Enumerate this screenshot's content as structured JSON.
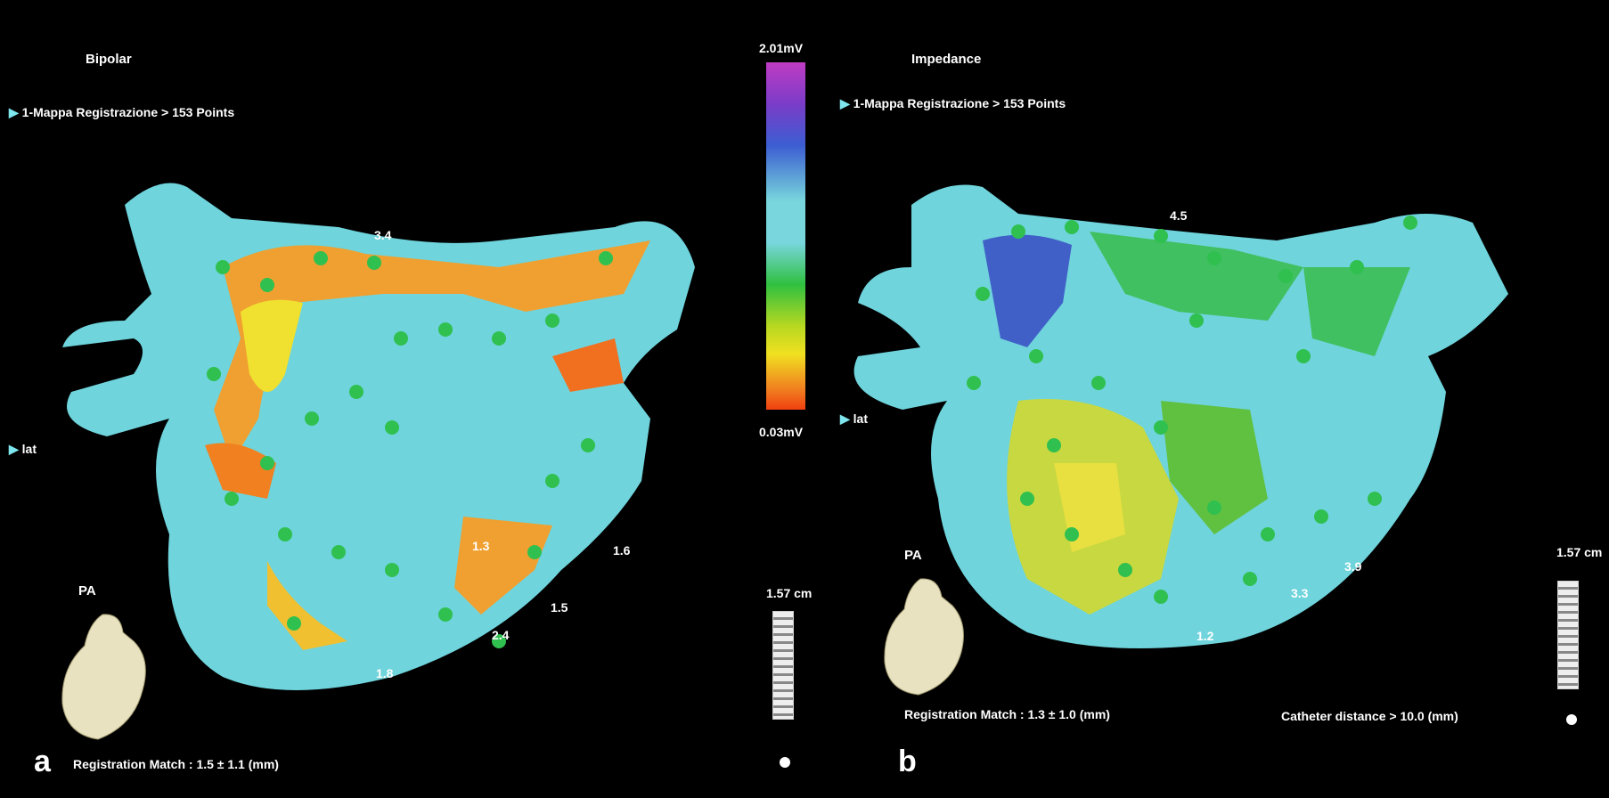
{
  "color_scale": {
    "max_label": "2.01mV",
    "min_label": "0.03mV",
    "colors": [
      "#c03cc4",
      "#3c5ed2",
      "#78d6dc",
      "#30c040",
      "#f0e020",
      "#f04010"
    ]
  },
  "panel_a": {
    "letter": "a",
    "title": "Bipolar",
    "map_label": "1-Mappa Registrazione > 153 Points",
    "side_label": "lat",
    "view_label": "PA",
    "scale_label": "1.57 cm",
    "footer": "Registration Match : 1.5 ± 1.1 (mm)",
    "point_values": [
      "3.4",
      "2.4",
      "1.5",
      "1.8",
      "1.6",
      "1.3"
    ]
  },
  "panel_b": {
    "letter": "b",
    "title": "Impedance",
    "map_label": "1-Mappa Registrazione > 153 Points",
    "side_label": "lat",
    "view_label": "PA",
    "scale_label": "1.57 cm",
    "footer": "Registration Match : 1.3 ± 1.0 (mm)",
    "catheter": "Catheter distance > 10.0 (mm)",
    "point_values": [
      "4.5",
      "3.3",
      "3.9",
      "1.2"
    ]
  }
}
